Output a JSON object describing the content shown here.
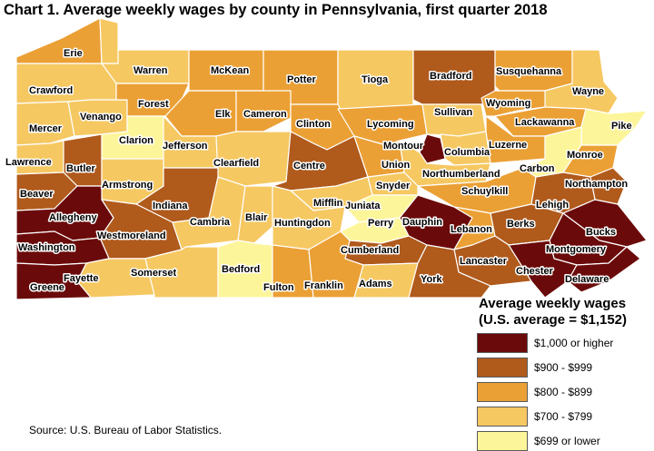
{
  "title": "Chart 1. Average weekly wages by county in Pennsylvania, first quarter 2018",
  "source": "Source: U.S. Bureau of Labor Statistics.",
  "legend": {
    "title_line1": "Average weekly wages",
    "title_line2": "(U.S. average = $1,152)",
    "items": [
      {
        "label": "$1,000 or higher",
        "color": "#6b0a0a"
      },
      {
        "label": "$900 - $999",
        "color": "#b05a1c"
      },
      {
        "label": "$800 - $899",
        "color": "#eba035"
      },
      {
        "label": "$700 - $799",
        "color": "#f6c862"
      },
      {
        "label": "$699 or lower",
        "color": "#fdf59a"
      }
    ]
  },
  "counties": {
    "erie": {
      "name": "Erie",
      "color": "#eba035"
    },
    "crawford": {
      "name": "Crawford",
      "color": "#f6c862"
    },
    "warren": {
      "name": "Warren",
      "color": "#f6c862"
    },
    "mckean": {
      "name": "McKean",
      "color": "#eba035"
    },
    "potter": {
      "name": "Potter",
      "color": "#eba035"
    },
    "tioga": {
      "name": "Tioga",
      "color": "#f6c862"
    },
    "bradford": {
      "name": "Bradford",
      "color": "#b05a1c"
    },
    "susquehanna": {
      "name": "Susquehanna",
      "color": "#eba035"
    },
    "wayne": {
      "name": "Wayne",
      "color": "#f6c862"
    },
    "mercer": {
      "name": "Mercer",
      "color": "#f6c862"
    },
    "venango": {
      "name": "Venango",
      "color": "#f6c862"
    },
    "forest": {
      "name": "Forest",
      "color": "#eba035"
    },
    "elk": {
      "name": "Elk",
      "color": "#eba035"
    },
    "cameron": {
      "name": "Cameron",
      "color": "#eba035"
    },
    "clinton": {
      "name": "Clinton",
      "color": "#eba035"
    },
    "lycoming": {
      "name": "Lycoming",
      "color": "#eba035"
    },
    "sullivan": {
      "name": "Sullivan",
      "color": "#f6c862"
    },
    "wyoming": {
      "name": "Wyoming",
      "color": "#eba035"
    },
    "lackawanna": {
      "name": "Lackawanna",
      "color": "#eba035"
    },
    "pike": {
      "name": "Pike",
      "color": "#fdf59a"
    },
    "lawrence": {
      "name": "Lawrence",
      "color": "#f6c862"
    },
    "butler": {
      "name": "Butler",
      "color": "#b05a1c"
    },
    "clarion": {
      "name": "Clarion",
      "color": "#fdf59a"
    },
    "jefferson": {
      "name": "Jefferson",
      "color": "#f6c862"
    },
    "clearfield": {
      "name": "Clearfield",
      "color": "#f6c862"
    },
    "centre": {
      "name": "Centre",
      "color": "#b05a1c"
    },
    "union": {
      "name": "Union",
      "color": "#eba035"
    },
    "montour": {
      "name": "Montour",
      "color": "#6b0a0a"
    },
    "columbia": {
      "name": "Columbia",
      "color": "#f6c862"
    },
    "northumberland": {
      "name": "Northumberland",
      "color": "#f6c862"
    },
    "luzerne": {
      "name": "Luzerne",
      "color": "#eba035"
    },
    "carbon": {
      "name": "Carbon",
      "color": "#fdf59a"
    },
    "monroe": {
      "name": "Monroe",
      "color": "#eba035"
    },
    "northampton": {
      "name": "Northampton",
      "color": "#b05a1c"
    },
    "beaver": {
      "name": "Beaver",
      "color": "#b05a1c"
    },
    "armstrong": {
      "name": "Armstrong",
      "color": "#f6c862"
    },
    "indiana": {
      "name": "Indiana",
      "color": "#b05a1c"
    },
    "mifflin": {
      "name": "Mifflin",
      "color": "#f6c862"
    },
    "snyder": {
      "name": "Snyder",
      "color": "#f6c862"
    },
    "schuylkill": {
      "name": "Schuylkill",
      "color": "#eba035"
    },
    "lehigh": {
      "name": "Lehigh",
      "color": "#b05a1c"
    },
    "allegheny": {
      "name": "Allegheny",
      "color": "#6b0a0a"
    },
    "cambria": {
      "name": "Cambria",
      "color": "#f6c862"
    },
    "blair": {
      "name": "Blair",
      "color": "#f6c862"
    },
    "huntingdon": {
      "name": "Huntingdon",
      "color": "#f6c862"
    },
    "juniata": {
      "name": "Juniata",
      "color": "#fdf59a"
    },
    "perry": {
      "name": "Perry",
      "color": "#fdf59a"
    },
    "dauphin": {
      "name": "Dauphin",
      "color": "#6b0a0a"
    },
    "lebanon": {
      "name": "Lebanon",
      "color": "#eba035"
    },
    "berks": {
      "name": "Berks",
      "color": "#b05a1c"
    },
    "bucks": {
      "name": "Bucks",
      "color": "#6b0a0a"
    },
    "washington": {
      "name": "Washington",
      "color": "#6b0a0a"
    },
    "westmoreland": {
      "name": "Westmoreland",
      "color": "#b05a1c"
    },
    "montgomery": {
      "name": "Montgomery",
      "color": "#6b0a0a"
    },
    "cumberland": {
      "name": "Cumberland",
      "color": "#b05a1c"
    },
    "lancaster": {
      "name": "Lancaster",
      "color": "#b05a1c"
    },
    "fayette": {
      "name": "Fayette",
      "color": "#f6c862"
    },
    "somerset": {
      "name": "Somerset",
      "color": "#f6c862"
    },
    "bedford": {
      "name": "Bedford",
      "color": "#fdf59a"
    },
    "chester": {
      "name": "Chester",
      "color": "#6b0a0a"
    },
    "delaware": {
      "name": "Delaware",
      "color": "#6b0a0a"
    },
    "greene": {
      "name": "Greene",
      "color": "#6b0a0a"
    },
    "fulton": {
      "name": "Fulton",
      "color": "#eba035"
    },
    "franklin": {
      "name": "Franklin",
      "color": "#eba035"
    },
    "adams": {
      "name": "Adams",
      "color": "#f6c862"
    },
    "york": {
      "name": "York",
      "color": "#b05a1c"
    }
  }
}
